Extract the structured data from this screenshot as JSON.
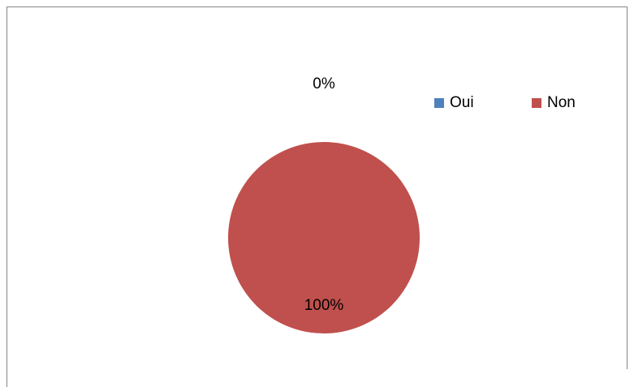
{
  "chart_data": {
    "type": "pie",
    "categories": [
      "Oui",
      "Non"
    ],
    "values": [
      0,
      100
    ],
    "value_labels": [
      "0%",
      "100%"
    ],
    "colors": [
      "#4f81bd",
      "#c0504d"
    ],
    "legend": "top-right"
  }
}
